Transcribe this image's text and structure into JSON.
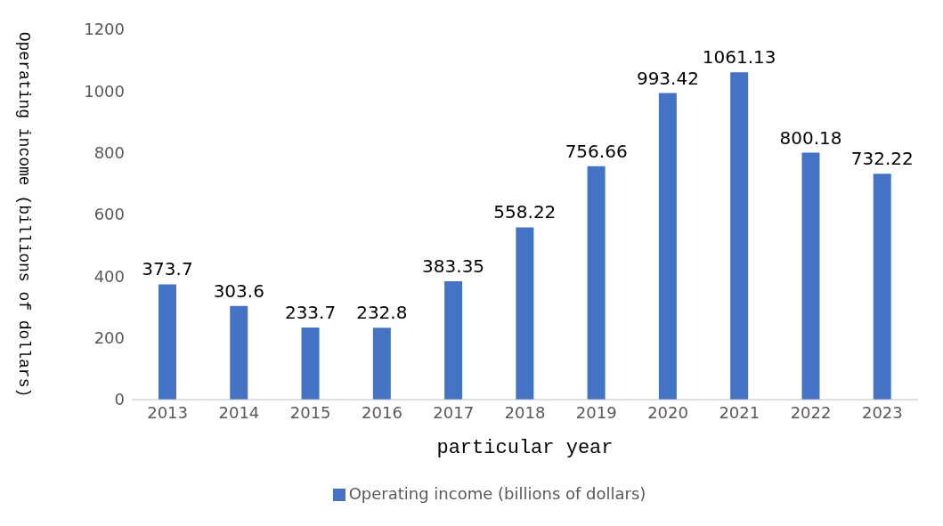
{
  "chart_data": {
    "type": "bar",
    "xlabel": "particular year",
    "ylabel": "Operating income (billions of dollars)",
    "categories": [
      "2013",
      "2014",
      "2015",
      "2016",
      "2017",
      "2018",
      "2019",
      "2020",
      "2021",
      "2022",
      "2023"
    ],
    "series": [
      {
        "name": "Operating income (billions of dollars)",
        "color": "#4472c4",
        "values": [
          373.7,
          303.6,
          233.7,
          232.8,
          383.35,
          558.22,
          756.66,
          993.42,
          1061.13,
          800.18,
          732.22
        ]
      }
    ],
    "ylim": [
      0,
      1200
    ],
    "yticks": [
      0,
      200,
      400,
      600,
      800,
      1000,
      1200
    ],
    "grid": false,
    "legend": "bottom",
    "data_labels": true
  }
}
